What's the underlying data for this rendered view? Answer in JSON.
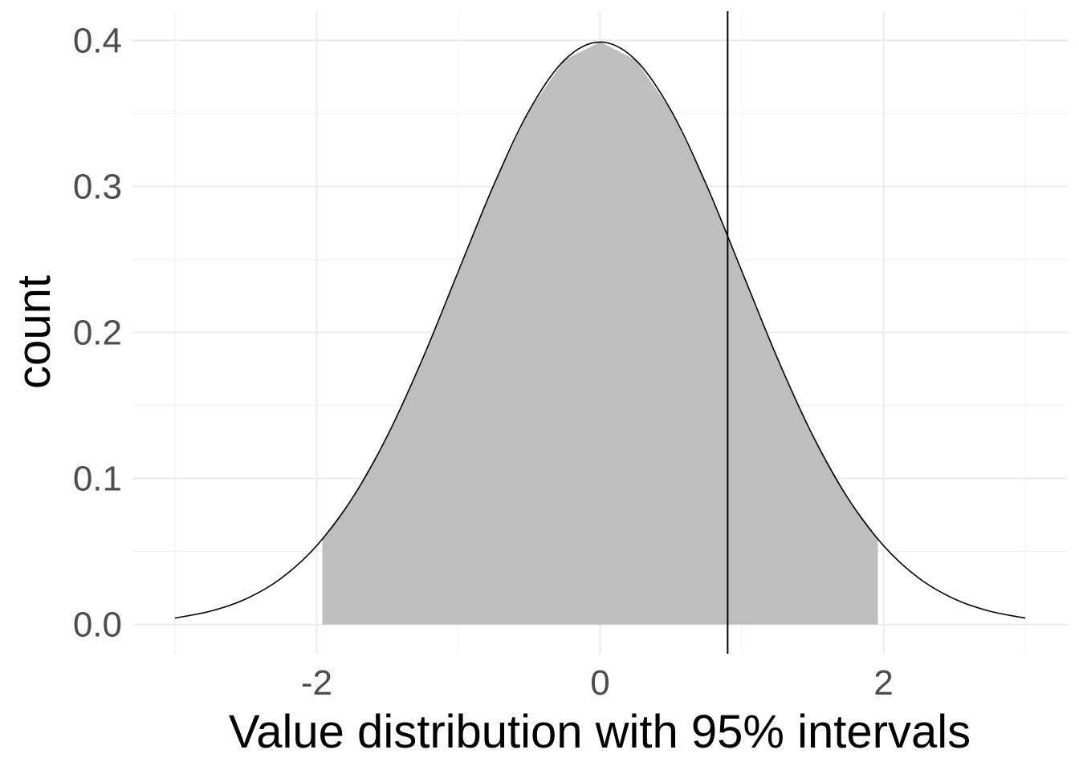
{
  "chart_data": {
    "type": "area",
    "title": "",
    "xlabel": "Value distribution with 95% intervals",
    "ylabel": "count",
    "xlim": [
      -3.3,
      3.3
    ],
    "ylim": [
      -0.02,
      0.42
    ],
    "x_ticks": [
      -2,
      0,
      2
    ],
    "x_tick_labels": [
      "-2",
      "0",
      "2"
    ],
    "x_minor_ticks": [
      -3,
      -1,
      1,
      3
    ],
    "y_ticks": [
      0.0,
      0.1,
      0.2,
      0.3,
      0.4
    ],
    "y_tick_labels": [
      "0.0",
      "0.1",
      "0.2",
      "0.3",
      "0.4"
    ],
    "y_minor_ticks": [
      0.05,
      0.15,
      0.25,
      0.35
    ],
    "grid": true,
    "legend": "none",
    "series": [
      {
        "values": [
          [
            -3.0,
            0.0044
          ],
          [
            -2.75,
            0.0091
          ],
          [
            -2.5,
            0.0175
          ],
          [
            -2.25,
            0.0317
          ],
          [
            -2.0,
            0.054
          ],
          [
            -1.75,
            0.0863
          ],
          [
            -1.5,
            0.1295
          ],
          [
            -1.25,
            0.1826
          ],
          [
            -1.0,
            0.242
          ],
          [
            -0.75,
            0.3011
          ],
          [
            -0.5,
            0.3521
          ],
          [
            -0.25,
            0.3867
          ],
          [
            0.0,
            0.3989
          ],
          [
            0.25,
            0.3867
          ],
          [
            0.5,
            0.3521
          ],
          [
            0.75,
            0.3011
          ],
          [
            1.0,
            0.242
          ],
          [
            1.25,
            0.1826
          ],
          [
            1.5,
            0.1295
          ],
          [
            1.75,
            0.0863
          ],
          [
            2.0,
            0.054
          ],
          [
            2.25,
            0.0317
          ],
          [
            2.5,
            0.0175
          ],
          [
            2.75,
            0.0091
          ],
          [
            3.0,
            0.0044
          ]
        ]
      }
    ],
    "shaded_interval": [
      -1.96,
      1.96
    ],
    "vertical_line_x": 0.9,
    "colors": {
      "fill": "#bebebe",
      "curve": "#000000",
      "vline": "#000000",
      "grid": "#ebebeb"
    }
  }
}
